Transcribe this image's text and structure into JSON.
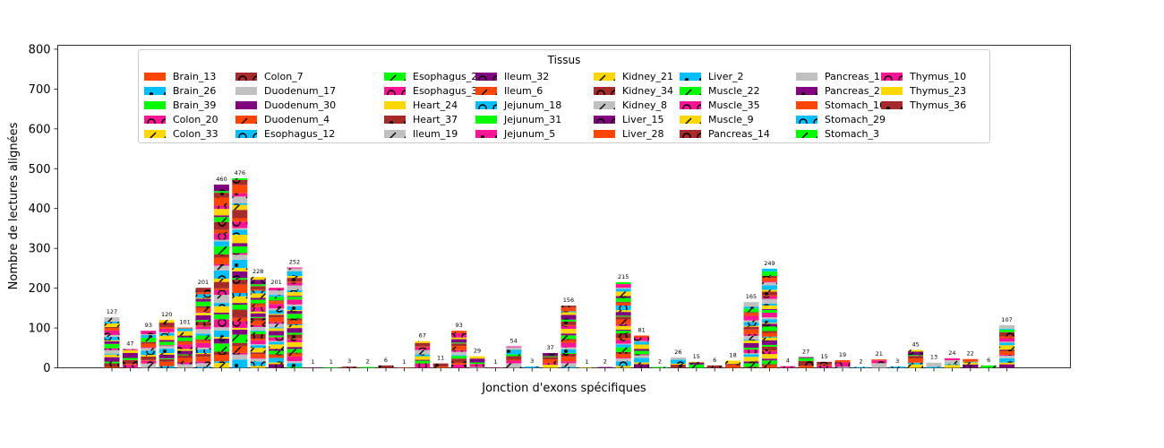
{
  "chart_data": {
    "type": "bar",
    "stacked": true,
    "title": "",
    "xlabel": "Jonction d'exons spécifiques",
    "ylabel": "Nombre de lectures alignées",
    "ylim": [
      0,
      810
    ],
    "yticks": [
      0,
      100,
      200,
      300,
      400,
      500,
      600,
      700,
      800
    ],
    "legend": {
      "title": "Tissus",
      "placement": "top-center",
      "columns": 8
    },
    "totals": [
      127,
      47,
      93,
      120,
      101,
      201,
      460,
      476,
      228,
      201,
      252,
      1,
      1,
      3,
      2,
      6,
      1,
      67,
      11,
      93,
      29,
      1,
      54,
      3,
      37,
      156,
      1,
      2,
      215,
      81,
      2,
      26,
      15,
      6,
      18,
      165,
      249,
      4,
      27,
      15,
      19,
      2,
      21,
      3,
      45,
      13,
      24,
      22,
      6,
      107
    ],
    "series": [
      {
        "name": "Brain_13",
        "color": "#ff4500",
        "pattern": "none"
      },
      {
        "name": "Brain_26",
        "color": "#00bfff",
        "pattern": "dot"
      },
      {
        "name": "Brain_39",
        "color": "#00ff00",
        "pattern": "none"
      },
      {
        "name": "Colon_20",
        "color": "#ff1493",
        "pattern": "circle"
      },
      {
        "name": "Colon_33",
        "color": "#ffd700",
        "pattern": "slash"
      },
      {
        "name": "Colon_7",
        "color": "#a52a2a",
        "pattern": "circle"
      },
      {
        "name": "Duodenum_17",
        "color": "#c0c0c0",
        "pattern": "none"
      },
      {
        "name": "Duodenum_30",
        "color": "#800080",
        "pattern": "none"
      },
      {
        "name": "Duodenum_4",
        "color": "#ff4500",
        "pattern": "slash"
      },
      {
        "name": "Esophagus_12",
        "color": "#00bfff",
        "pattern": "circle"
      },
      {
        "name": "Esophagus_25",
        "color": "#00ff00",
        "pattern": "slash"
      },
      {
        "name": "Esophagus_38",
        "color": "#ff1493",
        "pattern": "circle"
      },
      {
        "name": "Heart_24",
        "color": "#ffd700",
        "pattern": "none"
      },
      {
        "name": "Heart_37",
        "color": "#a52a2a",
        "pattern": "dot"
      },
      {
        "name": "Ileum_19",
        "color": "#c0c0c0",
        "pattern": "slash"
      },
      {
        "name": "Ileum_32",
        "color": "#800080",
        "pattern": "circle"
      },
      {
        "name": "Ileum_6",
        "color": "#ff4500",
        "pattern": "slash"
      },
      {
        "name": "Jejunum_18",
        "color": "#00bfff",
        "pattern": "circle"
      },
      {
        "name": "Jejunum_31",
        "color": "#00ff00",
        "pattern": "none"
      },
      {
        "name": "Jejunum_5",
        "color": "#ff1493",
        "pattern": "dot"
      },
      {
        "name": "Kidney_21",
        "color": "#ffd700",
        "pattern": "slash"
      },
      {
        "name": "Kidney_34",
        "color": "#a52a2a",
        "pattern": "circle"
      },
      {
        "name": "Kidney_8",
        "color": "#c0c0c0",
        "pattern": "slash"
      },
      {
        "name": "Liver_15",
        "color": "#800080",
        "pattern": "circle"
      },
      {
        "name": "Liver_28",
        "color": "#ff4500",
        "pattern": "none"
      },
      {
        "name": "Liver_2",
        "color": "#00bfff",
        "pattern": "dot"
      },
      {
        "name": "Muscle_22",
        "color": "#00ff00",
        "pattern": "slash"
      },
      {
        "name": "Muscle_35",
        "color": "#ff1493",
        "pattern": "circle"
      },
      {
        "name": "Muscle_9",
        "color": "#ffd700",
        "pattern": "slash"
      },
      {
        "name": "Pancreas_14",
        "color": "#a52a2a",
        "pattern": "circle"
      },
      {
        "name": "Pancreas_1",
        "color": "#c0c0c0",
        "pattern": "none"
      },
      {
        "name": "Pancreas_27",
        "color": "#800080",
        "pattern": "dot"
      },
      {
        "name": "Stomach_16",
        "color": "#ff4500",
        "pattern": "none"
      },
      {
        "name": "Stomach_29",
        "color": "#00bfff",
        "pattern": "circle"
      },
      {
        "name": "Stomach_3",
        "color": "#00ff00",
        "pattern": "slash"
      },
      {
        "name": "Thymus_10",
        "color": "#ff1493",
        "pattern": "circle"
      },
      {
        "name": "Thymus_23",
        "color": "#ffd700",
        "pattern": "none"
      },
      {
        "name": "Thymus_36",
        "color": "#a52a2a",
        "pattern": "dot"
      }
    ]
  }
}
